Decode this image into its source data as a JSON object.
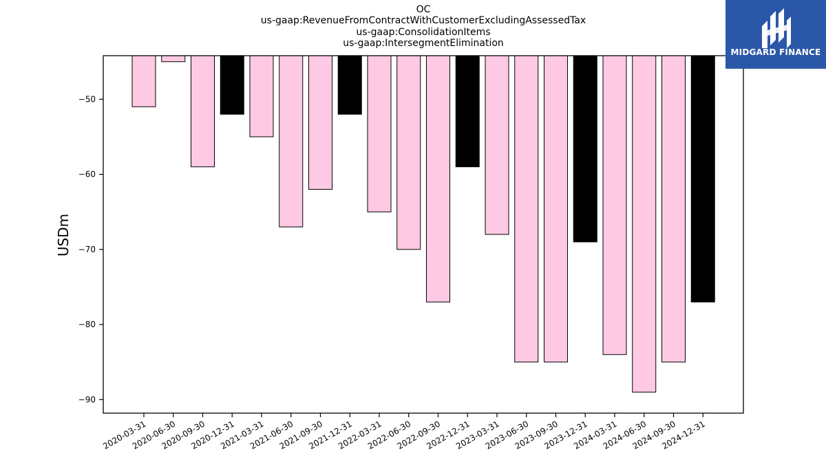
{
  "chart_data": {
    "type": "bar",
    "title_lines": [
      "OC",
      "us-gaap:RevenueFromContractWithCustomerExcludingAssessedTax",
      "us-gaap:ConsolidationItems",
      "us-gaap:IntersegmentElimination"
    ],
    "ylabel": "USDm",
    "xlabel": "",
    "categories": [
      "2020-03-31",
      "2020-06-30",
      "2020-09-30",
      "2020-12-31",
      "2021-03-31",
      "2021-06-30",
      "2021-09-30",
      "2021-12-31",
      "2022-03-31",
      "2022-06-30",
      "2022-09-30",
      "2022-12-31",
      "2023-03-31",
      "2023-06-30",
      "2023-09-30",
      "2023-12-31",
      "2024-03-31",
      "2024-06-30",
      "2024-09-30",
      "2024-12-31"
    ],
    "values": [
      -51,
      -45,
      -59,
      -52,
      -55,
      -67,
      -62,
      -52,
      -65,
      -70,
      -77,
      -59,
      -68,
      -85,
      -85,
      -69,
      -84,
      -89,
      -85,
      -77
    ],
    "highlight": [
      false,
      false,
      false,
      true,
      false,
      false,
      false,
      true,
      false,
      false,
      false,
      true,
      false,
      false,
      false,
      true,
      false,
      false,
      false,
      true
    ],
    "colors": {
      "normal": "#fdc9e3",
      "highlight": "#000000",
      "edge": "#000000"
    },
    "ylim": [
      -91.8,
      -44.2
    ],
    "yticks": [
      -50,
      -60,
      -70,
      -80,
      -90
    ],
    "grid": false
  },
  "logo": {
    "name": "MIDGARD FINANCE"
  }
}
